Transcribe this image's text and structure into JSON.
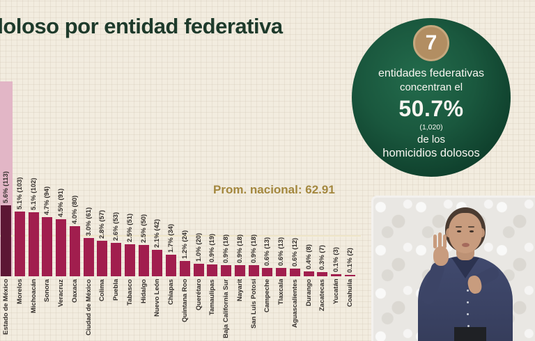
{
  "title": "doloso por entidad federativa",
  "badge": {
    "count": "7",
    "line1": "entidades federativas",
    "line2": "concentran el",
    "pct": "50.7%",
    "count_detail": "(1,020)",
    "line3": "de los",
    "line4": "homicidios dolosos",
    "circle_color": "#14503a",
    "count_circle_color": "#b28e62"
  },
  "chart_data": {
    "type": "bar",
    "title": "",
    "xlabel": "",
    "ylabel": "",
    "annotation": "Prom. nacional: 62.91",
    "national_average": 62.91,
    "categories": [
      "Estado de México",
      "Morelos",
      "Michoacán",
      "Sonora",
      "Veracruz",
      "Oaxaca",
      "Ciudad de México",
      "Colima",
      "Puebla",
      "Tabasco",
      "Hidalgo",
      "Nuevo León",
      "Chiapas",
      "Quintana Roo",
      "Querétaro",
      "Tamaulipas",
      "Baja California Sur",
      "Nayarit",
      "San Luis Potosí",
      "Campeche",
      "Tlaxcala",
      "Aguascalientes",
      "Durango",
      "Zacatecas",
      "Yucatán",
      "Coahuila"
    ],
    "values": [
      113,
      103,
      102,
      94,
      91,
      80,
      61,
      57,
      53,
      51,
      50,
      42,
      34,
      24,
      20,
      19,
      18,
      18,
      18,
      13,
      13,
      12,
      8,
      7,
      3,
      2
    ],
    "labels": [
      "5.6% (113)",
      "5.1% (103)",
      "5.1% (102)",
      "4.7% (94)",
      "4.5% (91)",
      "4.0% (80)",
      "3.0% (61)",
      "2.8% (57)",
      "2.6% (53)",
      "2.5% (51)",
      "2.5% (50)",
      "2.1% (42)",
      "1.7% (34)",
      "1.2% (24)",
      "1.0% (20)",
      "0.9% (19)",
      "0.9% (18)",
      "0.9% (18)",
      "0.9% (18)",
      "0.6% (13)",
      "0.6% (13)",
      "0.6% (12)",
      "0.4% (8)",
      "0.3% (7)",
      "0.1% (3)",
      "0.1% (2)"
    ],
    "highlight_index": 0,
    "bar_color": "#a11e4e",
    "highlight_bar_color": "#5c1734",
    "highlight_strip_color": "#e2b6c6",
    "average_line_color": "#efe6c8",
    "legend": null,
    "grid": false
  },
  "colors": {
    "background": "#f2ecdf",
    "title_text": "#1e3a2b",
    "annotation_text": "#a3873e"
  }
}
